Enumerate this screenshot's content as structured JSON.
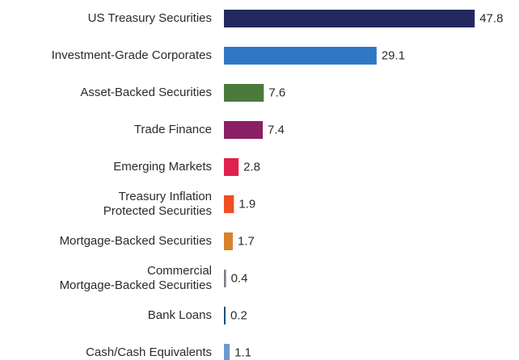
{
  "chart_data": {
    "type": "bar",
    "orientation": "horizontal",
    "categories": [
      "US Treasury Securities",
      "Investment-Grade Corporates",
      "Asset-Backed Securities",
      "Trade Finance",
      "Emerging Markets",
      "Treasury Inflation \nProtected Securities",
      "Mortgage-Backed Securities",
      "Commercial \nMortgage-Backed Securities",
      "Bank Loans",
      "Cash/Cash Equivalents"
    ],
    "values": [
      47.8,
      29.1,
      7.6,
      7.4,
      2.8,
      1.9,
      1.7,
      0.4,
      0.2,
      1.1
    ],
    "colors": [
      "#23285e",
      "#2f78c4",
      "#4a7b3a",
      "#8b1f63",
      "#e0204d",
      "#f04e23",
      "#d9822b",
      "#7a7f86",
      "#1f4e79",
      "#6a9bd1"
    ]
  }
}
